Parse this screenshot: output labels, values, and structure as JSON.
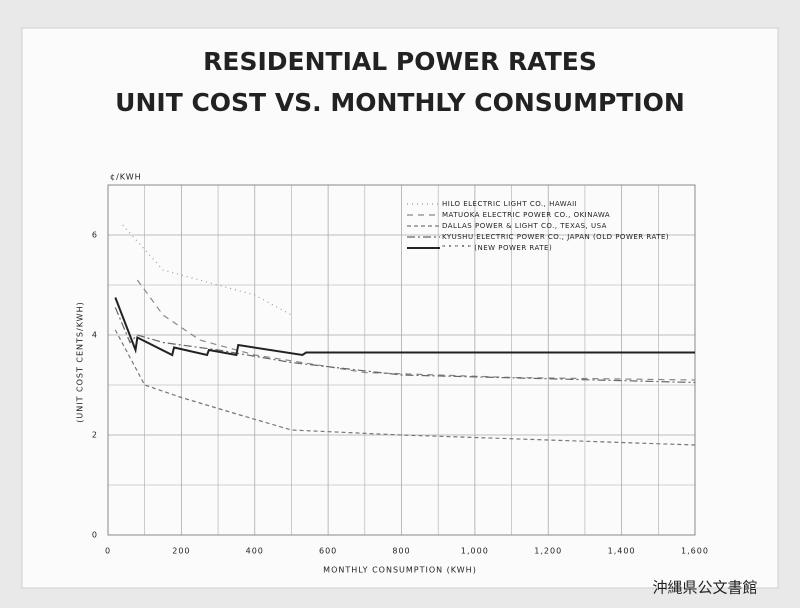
{
  "chart_data": {
    "type": "line",
    "title": "RESIDENTIAL POWER RATES",
    "subtitle": "UNIT COST VS. MONTHLY CONSUMPTION",
    "x_label": "MONTHLY CONSUMPTION (KWH)",
    "y_label": "(UNIT COST CENTS/KWH)",
    "y_unit": "¢/KWH",
    "watermark": "沖縄県公文書館",
    "xlim": [
      0,
      1600
    ],
    "ylim": [
      0,
      7
    ],
    "xticks": [
      0,
      200,
      400,
      600,
      800,
      {
        "value": 1000,
        "label": "1,000"
      },
      {
        "value": 1200,
        "label": "1,200"
      },
      {
        "value": 1400,
        "label": "1,400"
      },
      {
        "value": 1600,
        "label": "1,600"
      }
    ],
    "yticks": [
      0,
      2,
      4,
      6
    ],
    "grid": true,
    "legend": "upper right",
    "series": [
      {
        "name": "HILO ELECTRIC LIGHT CO., HAWAII",
        "color": "#999",
        "dash": "1 4",
        "x": [
          40,
          150,
          300,
          400,
          500
        ],
        "values": [
          6.2,
          5.3,
          5.0,
          4.8,
          4.4
        ]
      },
      {
        "name": "MATUOKA ELECTRIC POWER CO., OKINAWA",
        "color": "#888",
        "dash": "6 5",
        "x": [
          80,
          150,
          250,
          400,
          700,
          1100,
          1600
        ],
        "values": [
          5.1,
          4.4,
          3.9,
          3.6,
          3.25,
          3.15,
          3.1
        ]
      },
      {
        "name": "DALLAS POWER & LIGHT CO., TEXAS, USA",
        "color": "#777",
        "dash": "4 3",
        "x": [
          20,
          100,
          200,
          360,
          500,
          800,
          1400,
          1600
        ],
        "values": [
          4.1,
          3.0,
          2.75,
          2.4,
          2.1,
          2.0,
          1.85,
          1.8
        ]
      },
      {
        "name": "KYUSHU ELECTRIC POWER CO., JAPAN (OLD POWER RATE)",
        "color": "#666",
        "dash": "8 3 2 3",
        "x": [
          20,
          60,
          80,
          150,
          300,
          500,
          800,
          1600
        ],
        "values": [
          4.55,
          3.85,
          4.0,
          3.85,
          3.7,
          3.45,
          3.2,
          3.05
        ]
      },
      {
        "name": "\"     \"     \"   \"   \"   (NEW POWER RATE)",
        "color": "#222",
        "width": 2,
        "x": [
          20,
          75,
          80,
          175,
          180,
          270,
          275,
          350,
          355,
          530,
          540,
          1600
        ],
        "values": [
          4.75,
          3.7,
          3.95,
          3.6,
          3.75,
          3.6,
          3.7,
          3.6,
          3.8,
          3.6,
          3.65,
          3.65
        ]
      }
    ]
  }
}
